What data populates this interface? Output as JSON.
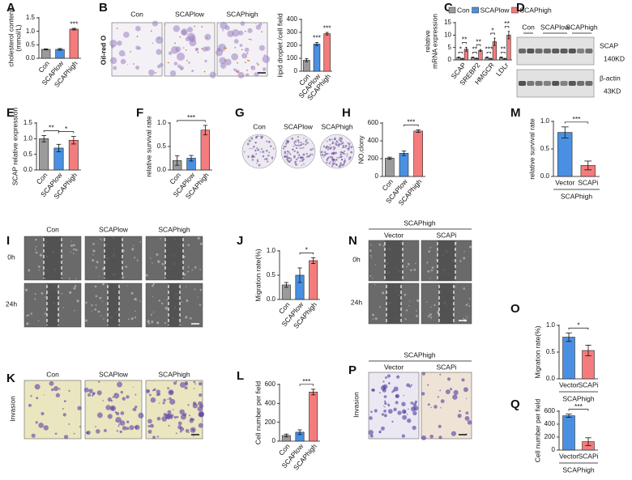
{
  "chart_data": [
    {
      "label": "A",
      "type": "bar",
      "ylabel": [
        "cholesterol content",
        "(mmol/L)"
      ],
      "categories": [
        "Con",
        "SCAPlow",
        "SCAPhigh"
      ],
      "values": [
        0.33,
        0.33,
        1.08
      ],
      "errors": [
        0.02,
        0.03,
        0.03
      ],
      "colors": [
        "#9b9b9b",
        "#4a90e2",
        "#f47c7c"
      ],
      "ylim": [
        0,
        1.5
      ],
      "yticks": [
        {
          "value": 0,
          "label": "0.0"
        },
        {
          "value": 0.5,
          "label": "0.5"
        },
        {
          "value": 1,
          "label": "1.0"
        },
        {
          "value": 1.5,
          "label": "1.5"
        }
      ],
      "annotations": [
        {
          "label": "***",
          "over": "SCAPhigh"
        }
      ]
    },
    {
      "type": "bar",
      "ylabel": "lipid droplet /cell field",
      "categories": [
        "Con",
        "SCAPlow",
        "SCAPhigh"
      ],
      "values": [
        85,
        210,
        290
      ],
      "errors": [
        12,
        12,
        10
      ],
      "colors": [
        "#9b9b9b",
        "#4a90e2",
        "#f47c7c"
      ],
      "ylim": [
        0,
        400
      ],
      "yticks": [
        0,
        100,
        200,
        300,
        400
      ],
      "annotations": [
        {
          "label": "***",
          "over": "SCAPlow"
        },
        {
          "label": "***",
          "over": "SCAPhigh"
        }
      ]
    },
    {
      "label": "C",
      "type": "bar",
      "ylabel": [
        "relative",
        "mRNA expression"
      ],
      "categories": [
        "SCAP",
        "SREBP2",
        "HMGCR",
        "LDLr"
      ],
      "series": [
        {
          "name": "Con",
          "color": "#9b9b9b",
          "values": [
            1,
            1,
            1,
            1
          ],
          "errors": [
            0.2,
            0.15,
            0.2,
            0.2
          ]
        },
        {
          "name": "SCAPlow",
          "color": "#4a90e2",
          "values": [
            0.5,
            0.6,
            0.5,
            0.5
          ],
          "errors": [
            0.15,
            0.15,
            0.15,
            0.15
          ]
        },
        {
          "name": "SCAPhigh",
          "color": "#f47c7c",
          "values": [
            4.3,
            3.8,
            7.3,
            10.0
          ],
          "errors": [
            0.8,
            0.4,
            1.5,
            1.5
          ]
        }
      ],
      "ylim": [
        0,
        15
      ],
      "yticks": [
        0,
        5,
        10,
        15
      ],
      "annotations": [
        {
          "label": "*",
          "category": "SCAP",
          "between": [
            "Con",
            "SCAPlow"
          ]
        },
        {
          "label": "**",
          "category": "SCAP",
          "between": [
            "SCAPlow",
            "SCAPhigh"
          ]
        },
        {
          "label": "**",
          "category": "SREBP2",
          "between": [
            "Con",
            "SCAPlow"
          ]
        },
        {
          "label": "**",
          "category": "SREBP2",
          "between": [
            "SCAPlow",
            "SCAPhigh"
          ]
        },
        {
          "label": "***",
          "category": "HMGCR",
          "between": [
            "Con",
            "SCAPlow"
          ]
        },
        {
          "label": "*",
          "category": "HMGCR",
          "between": [
            "SCAPlow",
            "SCAPhigh"
          ]
        },
        {
          "label": "**",
          "category": "LDLr",
          "between": [
            "Con",
            "SCAPlow"
          ]
        },
        {
          "label": "**",
          "category": "LDLr",
          "between": [
            "SCAPlow",
            "SCAPhigh"
          ]
        }
      ]
    },
    {
      "label": "E",
      "type": "bar",
      "ylabel": "SCAP relative expression",
      "categories": [
        "Con",
        "SCAPlow",
        "SCAPhigh"
      ],
      "values": [
        1.0,
        0.7,
        0.95
      ],
      "errors": [
        0.1,
        0.12,
        0.12
      ],
      "colors": [
        "#9b9b9b",
        "#4a90e2",
        "#f47c7c"
      ],
      "ylim": [
        0,
        1.5
      ],
      "yticks": [
        {
          "value": 0,
          "label": "0.0"
        },
        {
          "value": 0.5,
          "label": "0.5"
        },
        {
          "value": 1,
          "label": "1.0"
        },
        {
          "value": 1.5,
          "label": "1.5"
        }
      ],
      "annotations": [
        {
          "label": "**",
          "between": [
            "Con",
            "SCAPlow"
          ]
        },
        {
          "label": "*",
          "between": [
            "SCAPlow",
            "SCAPhigh"
          ]
        }
      ]
    },
    {
      "label": "F",
      "type": "bar",
      "ylabel": "relative survival rate",
      "categories": [
        "Con",
        "SCAPlow",
        "SCAPhigh"
      ],
      "values": [
        0.2,
        0.25,
        0.85
      ],
      "errors": [
        0.1,
        0.06,
        0.1
      ],
      "colors": [
        "#9b9b9b",
        "#4a90e2",
        "#f47c7c"
      ],
      "ylim": [
        0,
        1
      ],
      "yticks": [
        {
          "value": 0,
          "label": "0.0"
        },
        {
          "value": 0.5,
          "label": "0.5"
        },
        {
          "value": 1,
          "label": "1.0"
        }
      ],
      "annotations": [
        {
          "label": "***",
          "between": [
            "Con",
            "SCAPhigh"
          ]
        }
      ]
    },
    {
      "label": "H",
      "type": "bar",
      "ylabel": "NO.clony",
      "categories": [
        "Con",
        "SCAPlow",
        "SCAPhigh"
      ],
      "values": [
        205,
        260,
        510
      ],
      "errors": [
        12,
        25,
        15
      ],
      "colors": [
        "#9b9b9b",
        "#4a90e2",
        "#f47c7c"
      ],
      "ylim": [
        0,
        600
      ],
      "yticks": [
        0,
        200,
        400,
        600
      ],
      "annotations": [
        {
          "label": "***",
          "between": [
            "SCAPlow",
            "SCAPhigh"
          ]
        }
      ]
    },
    {
      "label": "M",
      "type": "bar",
      "ylabel": "relative survival rate",
      "categories": [
        "Vector",
        "SCAPi"
      ],
      "values": [
        0.8,
        0.2
      ],
      "errors": [
        0.1,
        0.08
      ],
      "colors": [
        "#4a90e2",
        "#f47c7c"
      ],
      "ylim": [
        0,
        1
      ],
      "yticks": [
        {
          "value": 0,
          "label": "0.0"
        },
        {
          "value": 0.5,
          "label": "0.5"
        },
        {
          "value": 1,
          "label": "1.0"
        }
      ],
      "annotations": [
        {
          "label": "***",
          "between": [
            "Vector",
            "SCAPi"
          ]
        }
      ],
      "group": "SCAPhigh"
    },
    {
      "label": "J",
      "type": "bar",
      "ylabel": "Migration rate(%)",
      "categories": [
        "Con",
        "SCAPlow",
        "SCAPhigh"
      ],
      "values": [
        0.3,
        0.5,
        0.8
      ],
      "errors": [
        0.05,
        0.15,
        0.06
      ],
      "colors": [
        "#9b9b9b",
        "#4a90e2",
        "#f47c7c"
      ],
      "ylim": [
        0,
        1
      ],
      "yticks": [
        {
          "value": 0,
          "label": "0.0"
        },
        {
          "value": 0.5,
          "label": "0.5"
        },
        {
          "value": 1,
          "label": "1.0"
        }
      ],
      "annotations": [
        {
          "label": "*",
          "between": [
            "SCAPlow",
            "SCAPhigh"
          ]
        }
      ]
    },
    {
      "label": "O",
      "type": "bar",
      "ylabel": "Migration rate(%)",
      "categories": [
        "Vector",
        "SCAPi"
      ],
      "values": [
        0.78,
        0.53
      ],
      "errors": [
        0.08,
        0.1
      ],
      "colors": [
        "#4a90e2",
        "#f47c7c"
      ],
      "ylim": [
        0,
        1
      ],
      "yticks": [
        {
          "value": 0,
          "label": "0.0"
        },
        {
          "value": 0.5,
          "label": "0.5"
        },
        {
          "value": 1,
          "label": "1.0"
        }
      ],
      "annotations": [
        {
          "label": "*",
          "between": [
            "Vector",
            "SCAPi"
          ]
        }
      ],
      "group": "SCAPhigh"
    },
    {
      "label": "L",
      "type": "bar",
      "ylabel": "Cell number per field",
      "categories": [
        "Con",
        "SCAPlow",
        "SCAPhigh"
      ],
      "values": [
        60,
        95,
        520
      ],
      "errors": [
        15,
        25,
        30
      ],
      "colors": [
        "#9b9b9b",
        "#4a90e2",
        "#f47c7c"
      ],
      "ylim": [
        0,
        600
      ],
      "yticks": [
        0,
        200,
        400,
        600
      ],
      "annotations": [
        {
          "label": "***",
          "between": [
            "SCAPlow",
            "SCAPhigh"
          ]
        }
      ]
    },
    {
      "label": "Q",
      "type": "bar",
      "ylabel": "Cell number per field",
      "categories": [
        "Vector",
        "SCAPi"
      ],
      "values": [
        530,
        130
      ],
      "errors": [
        25,
        60
      ],
      "colors": [
        "#4a90e2",
        "#f47c7c"
      ],
      "ylim": [
        0,
        600
      ],
      "yticks": [
        0,
        200,
        400,
        600
      ],
      "annotations": [
        {
          "label": "***",
          "between": [
            "Vector",
            "SCAPi"
          ]
        }
      ],
      "group": "SCAPhigh"
    }
  ],
  "image_panels": {
    "B": {
      "label": "B",
      "stain": "Oil-red O",
      "columns": [
        "Con",
        "SCAPlow",
        "SCAPhigh"
      ]
    },
    "D": {
      "label": "D",
      "columns": [
        "Con",
        "SCAPlow",
        "SCAPhigh"
      ],
      "bands": [
        {
          "name": "SCAP",
          "size": "140KD"
        },
        {
          "name": "β-actin",
          "size": "43KD"
        }
      ]
    },
    "G": {
      "label": "G",
      "columns": [
        "Con",
        "SCAPlow",
        "SCAPhigh"
      ]
    },
    "I": {
      "label": "I",
      "columns": [
        "Con",
        "SCAPlow",
        "SCAPhigh"
      ],
      "rows": [
        "0h",
        "24h"
      ]
    },
    "K": {
      "label": "K",
      "columns": [
        "Con",
        "SCAPlow",
        "SCAPhigh"
      ],
      "row": "Invasion"
    },
    "N": {
      "label": "N",
      "group": "SCAPhigh",
      "columns": [
        "Vector",
        "SCAPi"
      ],
      "rows": [
        "0h",
        "24h"
      ]
    },
    "P": {
      "label": "P",
      "group": "SCAPhigh",
      "columns": [
        "Vector",
        "SCAPi"
      ],
      "row": "Invasion"
    }
  }
}
